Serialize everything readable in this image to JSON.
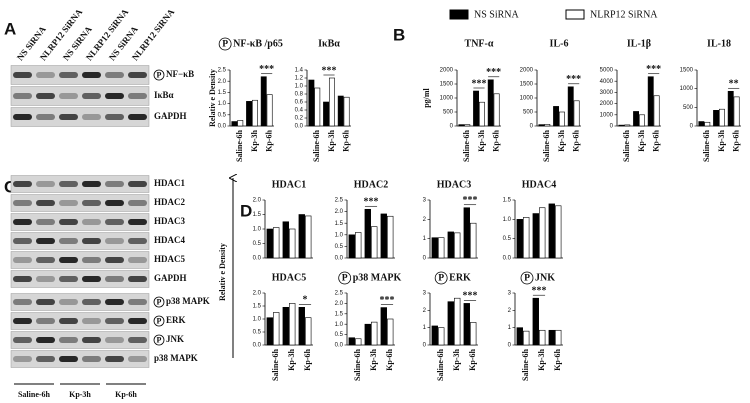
{
  "panels": [
    "A",
    "B",
    "C",
    "D"
  ],
  "legend": [
    {
      "name": "NS SiRNA",
      "color": "#000000"
    },
    {
      "name": "NLRP12 SiRNA",
      "color": "#ffffff"
    }
  ],
  "blot_lanes": [
    "NS SiRNA",
    "NLRP12 SiRNA",
    "NS SiRNA",
    "NLRP12 SiRNA",
    "NS SiRNA",
    "NLRP12 SiRNA"
  ],
  "blot_a_rows": [
    {
      "label": "NF−κB",
      "prefix": "P"
    },
    {
      "label": "IκBα"
    },
    {
      "label": "GAPDH"
    }
  ],
  "blot_c_rows": [
    {
      "label": "HDAC1"
    },
    {
      "label": "HDAC2"
    },
    {
      "label": "HDAC3"
    },
    {
      "label": "HDAC4"
    },
    {
      "label": "HDAC5"
    },
    {
      "label": "GAPDH"
    },
    {
      "label": "p38 MAPK",
      "prefix": "P"
    },
    {
      "label": "ERK",
      "prefix": "P"
    },
    {
      "label": "JNK",
      "prefix": "P"
    },
    {
      "label": "p38 MAPK"
    }
  ],
  "blot_groups": [
    "Saline-6h",
    "Kp-3h",
    "Kp-6h"
  ],
  "chart_data": [
    {
      "type": "bar",
      "title": "NF-κB /p65",
      "title_prefix": "P",
      "ylabel": "Relativ e Density",
      "categories": [
        "Saline-6h",
        "Kp-3h",
        "Kp-6h"
      ],
      "series": [
        {
          "color": "#000000",
          "values": [
            0.2,
            1.1,
            2.2
          ]
        },
        {
          "color": "#ffffff",
          "values": [
            0.25,
            1.15,
            1.4
          ]
        }
      ],
      "significance": [
        null,
        null,
        "***"
      ],
      "ylim": [
        0,
        2.5
      ],
      "yticks": [
        {
          "value": 0,
          "label": "0.0"
        },
        0.5,
        {
          "value": 1,
          "label": "1.0"
        },
        1.5,
        {
          "value": 2,
          "label": "2.0"
        },
        2.5
      ]
    },
    {
      "type": "bar",
      "title": "IκBα",
      "categories": [
        "Saline-6h",
        "Kp-3h",
        "Kp-6h"
      ],
      "series": [
        {
          "color": "#000000",
          "values": [
            1.15,
            0.6,
            0.75
          ]
        },
        {
          "color": "#ffffff",
          "values": [
            0.95,
            1.2,
            0.72
          ]
        }
      ],
      "significance": [
        null,
        "***",
        null
      ],
      "ylim": [
        0,
        1.4
      ],
      "yticks": [
        {
          "value": 0,
          "label": "0.0"
        },
        0.2,
        0.4,
        0.6,
        0.8,
        {
          "value": 1,
          "label": "1.0"
        },
        1.2,
        1.4
      ]
    },
    {
      "type": "bar",
      "title": "TNF-α",
      "ylabel": "pg/ml",
      "categories": [
        "Saline-6h",
        "Kp-3h",
        "Kp-6h"
      ],
      "series": [
        {
          "color": "#000000",
          "values": [
            50,
            1250,
            1650
          ]
        },
        {
          "color": "#ffffff",
          "values": [
            50,
            850,
            1150
          ]
        }
      ],
      "significance": [
        null,
        "***",
        "***"
      ],
      "ylim": [
        0,
        2000
      ],
      "yticks": [
        0,
        500,
        1000,
        1500,
        2000
      ]
    },
    {
      "type": "bar",
      "title": "IL-6",
      "categories": [
        "Saline-6h",
        "Kp-3h",
        "Kp-6h"
      ],
      "series": [
        {
          "color": "#000000",
          "values": [
            50,
            700,
            1400
          ]
        },
        {
          "color": "#ffffff",
          "values": [
            60,
            500,
            900
          ]
        }
      ],
      "significance": [
        null,
        null,
        "***"
      ],
      "ylim": [
        0,
        2000
      ],
      "yticks": [
        0,
        500,
        1000,
        1500,
        2000
      ]
    },
    {
      "type": "bar",
      "title": "IL-1β",
      "categories": [
        "Saline-6h",
        "Kp-3h",
        "Kp-6h"
      ],
      "series": [
        {
          "color": "#000000",
          "values": [
            80,
            1300,
            4400
          ]
        },
        {
          "color": "#ffffff",
          "values": [
            100,
            1000,
            2700
          ]
        }
      ],
      "significance": [
        null,
        null,
        "***"
      ],
      "ylim": [
        0,
        5000
      ],
      "yticks": [
        0,
        1000,
        2000,
        3000,
        4000,
        5000
      ]
    },
    {
      "type": "bar",
      "title": "IL-18",
      "categories": [
        "Saline-6h",
        "Kp-3h",
        "Kp-6h"
      ],
      "series": [
        {
          "color": "#000000",
          "values": [
            120,
            420,
            930
          ]
        },
        {
          "color": "#ffffff",
          "values": [
            100,
            450,
            780
          ]
        }
      ],
      "significance": [
        null,
        null,
        "**"
      ],
      "ylim": [
        0,
        1500
      ],
      "yticks": [
        0,
        500,
        1000,
        1500
      ]
    },
    {
      "type": "bar",
      "title": "HDAC1",
      "ylabel": "Relativ e Density",
      "series": [
        {
          "color": "#000000",
          "values": [
            1.0,
            1.25,
            1.5
          ]
        },
        {
          "color": "#ffffff",
          "values": [
            1.05,
            1.0,
            1.45
          ]
        }
      ],
      "ylim": [
        0,
        2
      ],
      "yticks": [
        {
          "value": 0,
          "label": "0.0"
        },
        0.5,
        {
          "value": 1,
          "label": "1.0"
        },
        1.5,
        {
          "value": 2,
          "label": "2.0"
        }
      ]
    },
    {
      "type": "bar",
      "title": "HDAC2",
      "series": [
        {
          "color": "#000000",
          "values": [
            1.0,
            2.1,
            1.9
          ]
        },
        {
          "color": "#ffffff",
          "values": [
            1.1,
            1.35,
            1.8
          ]
        }
      ],
      "significance": [
        null,
        "***",
        null
      ],
      "ylim": [
        0,
        2.5
      ],
      "yticks": [
        {
          "value": 0,
          "label": "0.0"
        },
        0.5,
        {
          "value": 1,
          "label": "1.0"
        },
        1.5,
        {
          "value": 2,
          "label": "2.0"
        },
        2.5
      ]
    },
    {
      "type": "bar",
      "title": "HDAC3",
      "series": [
        {
          "color": "#000000",
          "values": [
            1.05,
            1.35,
            2.6
          ]
        },
        {
          "color": "#ffffff",
          "values": [
            1.05,
            1.3,
            1.8
          ]
        }
      ],
      "significance": [
        null,
        null,
        "***"
      ],
      "ylim": [
        0,
        3
      ],
      "yticks": [
        0,
        1,
        2,
        3
      ]
    },
    {
      "type": "bar",
      "title": "HDAC4",
      "series": [
        {
          "color": "#000000",
          "values": [
            1.0,
            1.15,
            1.4
          ]
        },
        {
          "color": "#ffffff",
          "values": [
            1.05,
            1.3,
            1.35
          ]
        }
      ],
      "ylim": [
        0,
        1.5
      ],
      "yticks": [
        {
          "value": 0,
          "label": "0.0"
        },
        0.5,
        {
          "value": 1,
          "label": "1.0"
        },
        1.5
      ]
    },
    {
      "type": "bar",
      "title": "HDAC5",
      "categories": [
        "Saline-6h",
        "Kp-3h",
        "Kp-6h"
      ],
      "series": [
        {
          "color": "#000000",
          "values": [
            1.05,
            1.45,
            1.45
          ]
        },
        {
          "color": "#ffffff",
          "values": [
            1.25,
            1.6,
            1.05
          ]
        }
      ],
      "significance": [
        null,
        null,
        "*"
      ],
      "ylim": [
        0,
        2
      ],
      "yticks": [
        {
          "value": 0,
          "label": "0.0"
        },
        0.5,
        {
          "value": 1,
          "label": "1.0"
        },
        1.5,
        {
          "value": 2,
          "label": "2.0"
        }
      ]
    },
    {
      "type": "bar",
      "title": "p38 MAPK",
      "title_prefix": "P",
      "categories": [
        "Saline-6h",
        "Kp-3h",
        "Kp-6h"
      ],
      "series": [
        {
          "color": "#000000",
          "values": [
            0.35,
            1.0,
            1.8
          ]
        },
        {
          "color": "#ffffff",
          "values": [
            0.3,
            1.1,
            1.25
          ]
        }
      ],
      "significance": [
        null,
        null,
        "***"
      ],
      "ylim": [
        0,
        2.5
      ],
      "yticks": [
        {
          "value": 0,
          "label": "0.0"
        },
        0.5,
        {
          "value": 1,
          "label": "1.0"
        },
        1.5,
        {
          "value": 2,
          "label": "2.0"
        },
        2.5
      ]
    },
    {
      "type": "bar",
      "title": "ERK",
      "title_prefix": "P",
      "categories": [
        "Saline-6h",
        "Kp-3h",
        "Kp-6h"
      ],
      "series": [
        {
          "color": "#000000",
          "values": [
            1.1,
            2.5,
            2.4
          ]
        },
        {
          "color": "#ffffff",
          "values": [
            1.0,
            2.7,
            1.3
          ]
        }
      ],
      "significance": [
        null,
        null,
        "***"
      ],
      "ylim": [
        0,
        3
      ],
      "yticks": [
        0,
        1,
        2,
        3
      ]
    },
    {
      "type": "bar",
      "title": "JNK",
      "title_prefix": "P",
      "categories": [
        "Saline-6h",
        "Kp-3h",
        "Kp-6h"
      ],
      "series": [
        {
          "color": "#000000",
          "values": [
            1.0,
            2.7,
            0.85
          ]
        },
        {
          "color": "#ffffff",
          "values": [
            0.8,
            0.85,
            0.85
          ]
        }
      ],
      "significance": [
        null,
        "***",
        null
      ],
      "ylim": [
        0,
        3
      ],
      "yticks": [
        0,
        1,
        2,
        3
      ]
    }
  ]
}
